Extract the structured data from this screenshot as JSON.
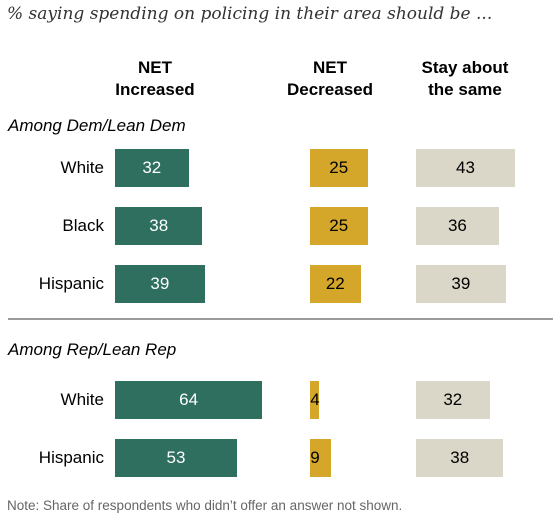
{
  "title": "% saying spending on policing in their area should be ...",
  "columns": [
    "NET\nIncreased",
    "NET\nDecreased",
    "Stay about\nthe same"
  ],
  "colors": {
    "increased": "#2E6F5F",
    "decreased": "#D4A62A",
    "same": "#DAD6C8"
  },
  "chart_data": {
    "type": "bar",
    "groups": [
      {
        "name": "Among Dem/Lean Dem",
        "rows": [
          {
            "label": "White",
            "values": [
              32,
              25,
              43
            ]
          },
          {
            "label": "Black",
            "values": [
              38,
              25,
              36
            ]
          },
          {
            "label": "Hispanic",
            "values": [
              39,
              22,
              39
            ]
          }
        ]
      },
      {
        "name": "Among Rep/Lean Rep",
        "rows": [
          {
            "label": "White",
            "values": [
              64,
              4,
              32
            ]
          },
          {
            "label": "Hispanic",
            "values": [
              53,
              9,
              38
            ]
          }
        ]
      }
    ],
    "series": [
      {
        "name": "NET Increased"
      },
      {
        "name": "NET Decreased"
      },
      {
        "name": "Stay about the same"
      }
    ]
  },
  "note": "Note: Share of respondents who didn’t offer an answer not shown."
}
